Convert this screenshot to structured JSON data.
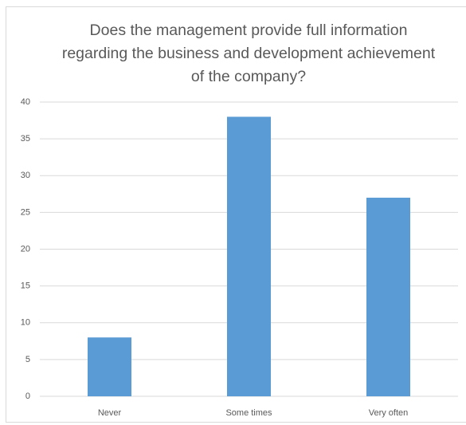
{
  "chart_data": {
    "type": "bar",
    "title": "Does the management provide full information regarding the business and development achievement of the company?",
    "categories": [
      "Never",
      "Some times",
      "Very often"
    ],
    "values": [
      8,
      38,
      27
    ],
    "color": "#5b9bd5",
    "ylim": [
      0,
      40
    ],
    "yticks": [
      0,
      5,
      10,
      15,
      20,
      25,
      30,
      35,
      40
    ],
    "grid": true
  }
}
